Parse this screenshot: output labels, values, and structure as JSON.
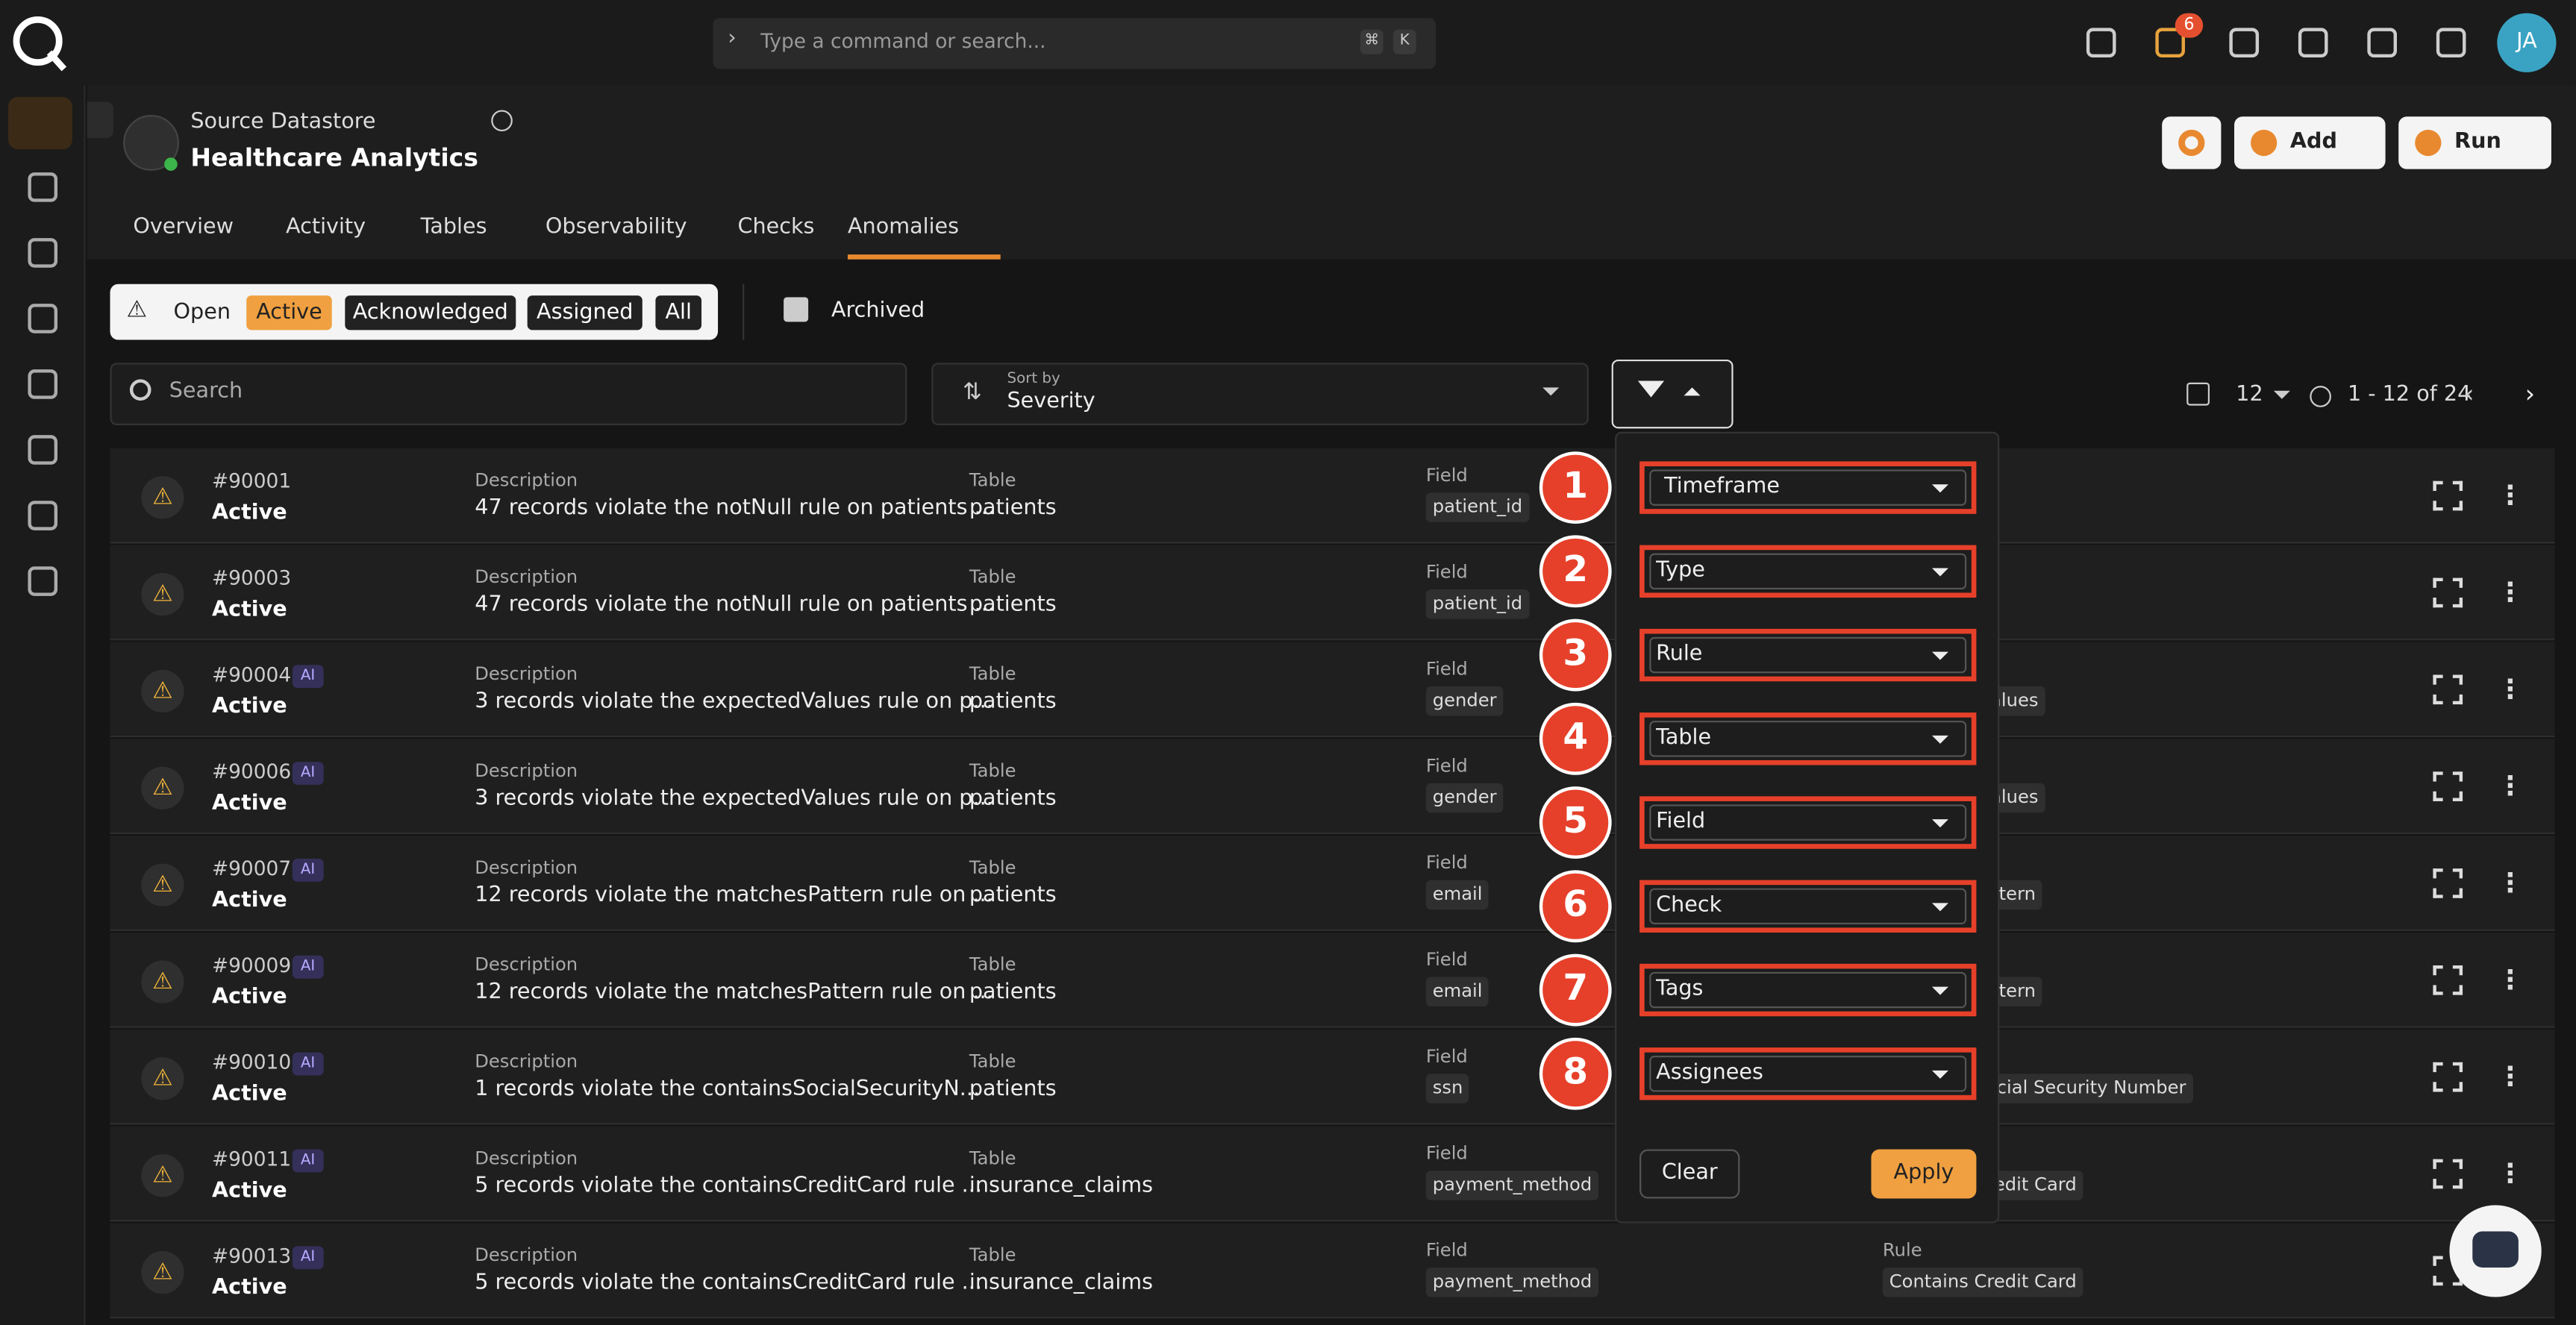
{
  "app": {
    "command_placeholder": "Type a command or search...",
    "shortcut_keys": [
      "⌘",
      "K"
    ],
    "notification_count": "6",
    "avatar": "JA"
  },
  "datastore": {
    "label": "Source Datastore",
    "name": "Healthcare Analytics"
  },
  "header_buttons": {
    "add": "Add",
    "run": "Run"
  },
  "tabs": [
    "Overview",
    "Activity",
    "Tables",
    "Observability",
    "Checks",
    "Anomalies"
  ],
  "active_tab": 5,
  "status_filters": [
    "Open",
    "Active",
    "Acknowledged",
    "Assigned",
    "All"
  ],
  "active_status": 1,
  "archived": "Archived",
  "search_placeholder": "Search",
  "sort": {
    "label": "Sort by",
    "value": "Severity"
  },
  "pagination": {
    "page_size": "12",
    "range": "1 - 12 of 24"
  },
  "column_labels": {
    "description": "Description",
    "table": "Table",
    "field": "Field",
    "rule": "Rule"
  },
  "ai_badge": "AI",
  "rows": [
    {
      "id": "#90001",
      "status": "Active",
      "ai": false,
      "description": "47 records violate the notNull rule on patients ...",
      "table": "patients",
      "field": "patient_id"
    },
    {
      "id": "#90003",
      "status": "Active",
      "ai": false,
      "description": "47 records violate the notNull rule on patients ...",
      "table": "patients",
      "field": "patient_id"
    },
    {
      "id": "#90004",
      "status": "Active",
      "ai": true,
      "description": "3 records violate the expectedValues rule on p...",
      "table": "patients",
      "field": "gender",
      "rule": "Expected Values"
    },
    {
      "id": "#90006",
      "status": "Active",
      "ai": true,
      "description": "3 records violate the expectedValues rule on p...",
      "table": "patients",
      "field": "gender",
      "rule": "Expected Values"
    },
    {
      "id": "#90007",
      "status": "Active",
      "ai": true,
      "description": "12 records violate the matchesPattern rule on ...",
      "table": "patients",
      "field": "email",
      "rule": "Matches Pattern"
    },
    {
      "id": "#90009",
      "status": "Active",
      "ai": true,
      "description": "12 records violate the matchesPattern rule on ...",
      "table": "patients",
      "field": "email",
      "rule": "Matches Pattern"
    },
    {
      "id": "#90010",
      "status": "Active",
      "ai": true,
      "description": "1 records violate the containsSocialSecurityN...",
      "table": "patients",
      "field": "ssn",
      "rule": "Contains Social Security Number"
    },
    {
      "id": "#90011",
      "status": "Active",
      "ai": true,
      "description": "5 records violate the containsCreditCard rule ...",
      "table": "insurance_claims",
      "field": "payment_method",
      "rule": "Contains Credit Card"
    },
    {
      "id": "#90013",
      "status": "Active",
      "ai": true,
      "description": "5 records violate the containsCreditCard rule ...",
      "table": "insurance_claims",
      "field": "payment_method",
      "rule": "Contains Credit Card"
    }
  ],
  "filter_panel": {
    "items": [
      {
        "number": "1",
        "label": "Timeframe"
      },
      {
        "number": "2",
        "label": "Type"
      },
      {
        "number": "3",
        "label": "Rule"
      },
      {
        "number": "4",
        "label": "Table"
      },
      {
        "number": "5",
        "label": "Field"
      },
      {
        "number": "6",
        "label": "Check"
      },
      {
        "number": "7",
        "label": "Tags"
      },
      {
        "number": "8",
        "label": "Assignees"
      }
    ],
    "clear": "Clear",
    "apply": "Apply"
  }
}
